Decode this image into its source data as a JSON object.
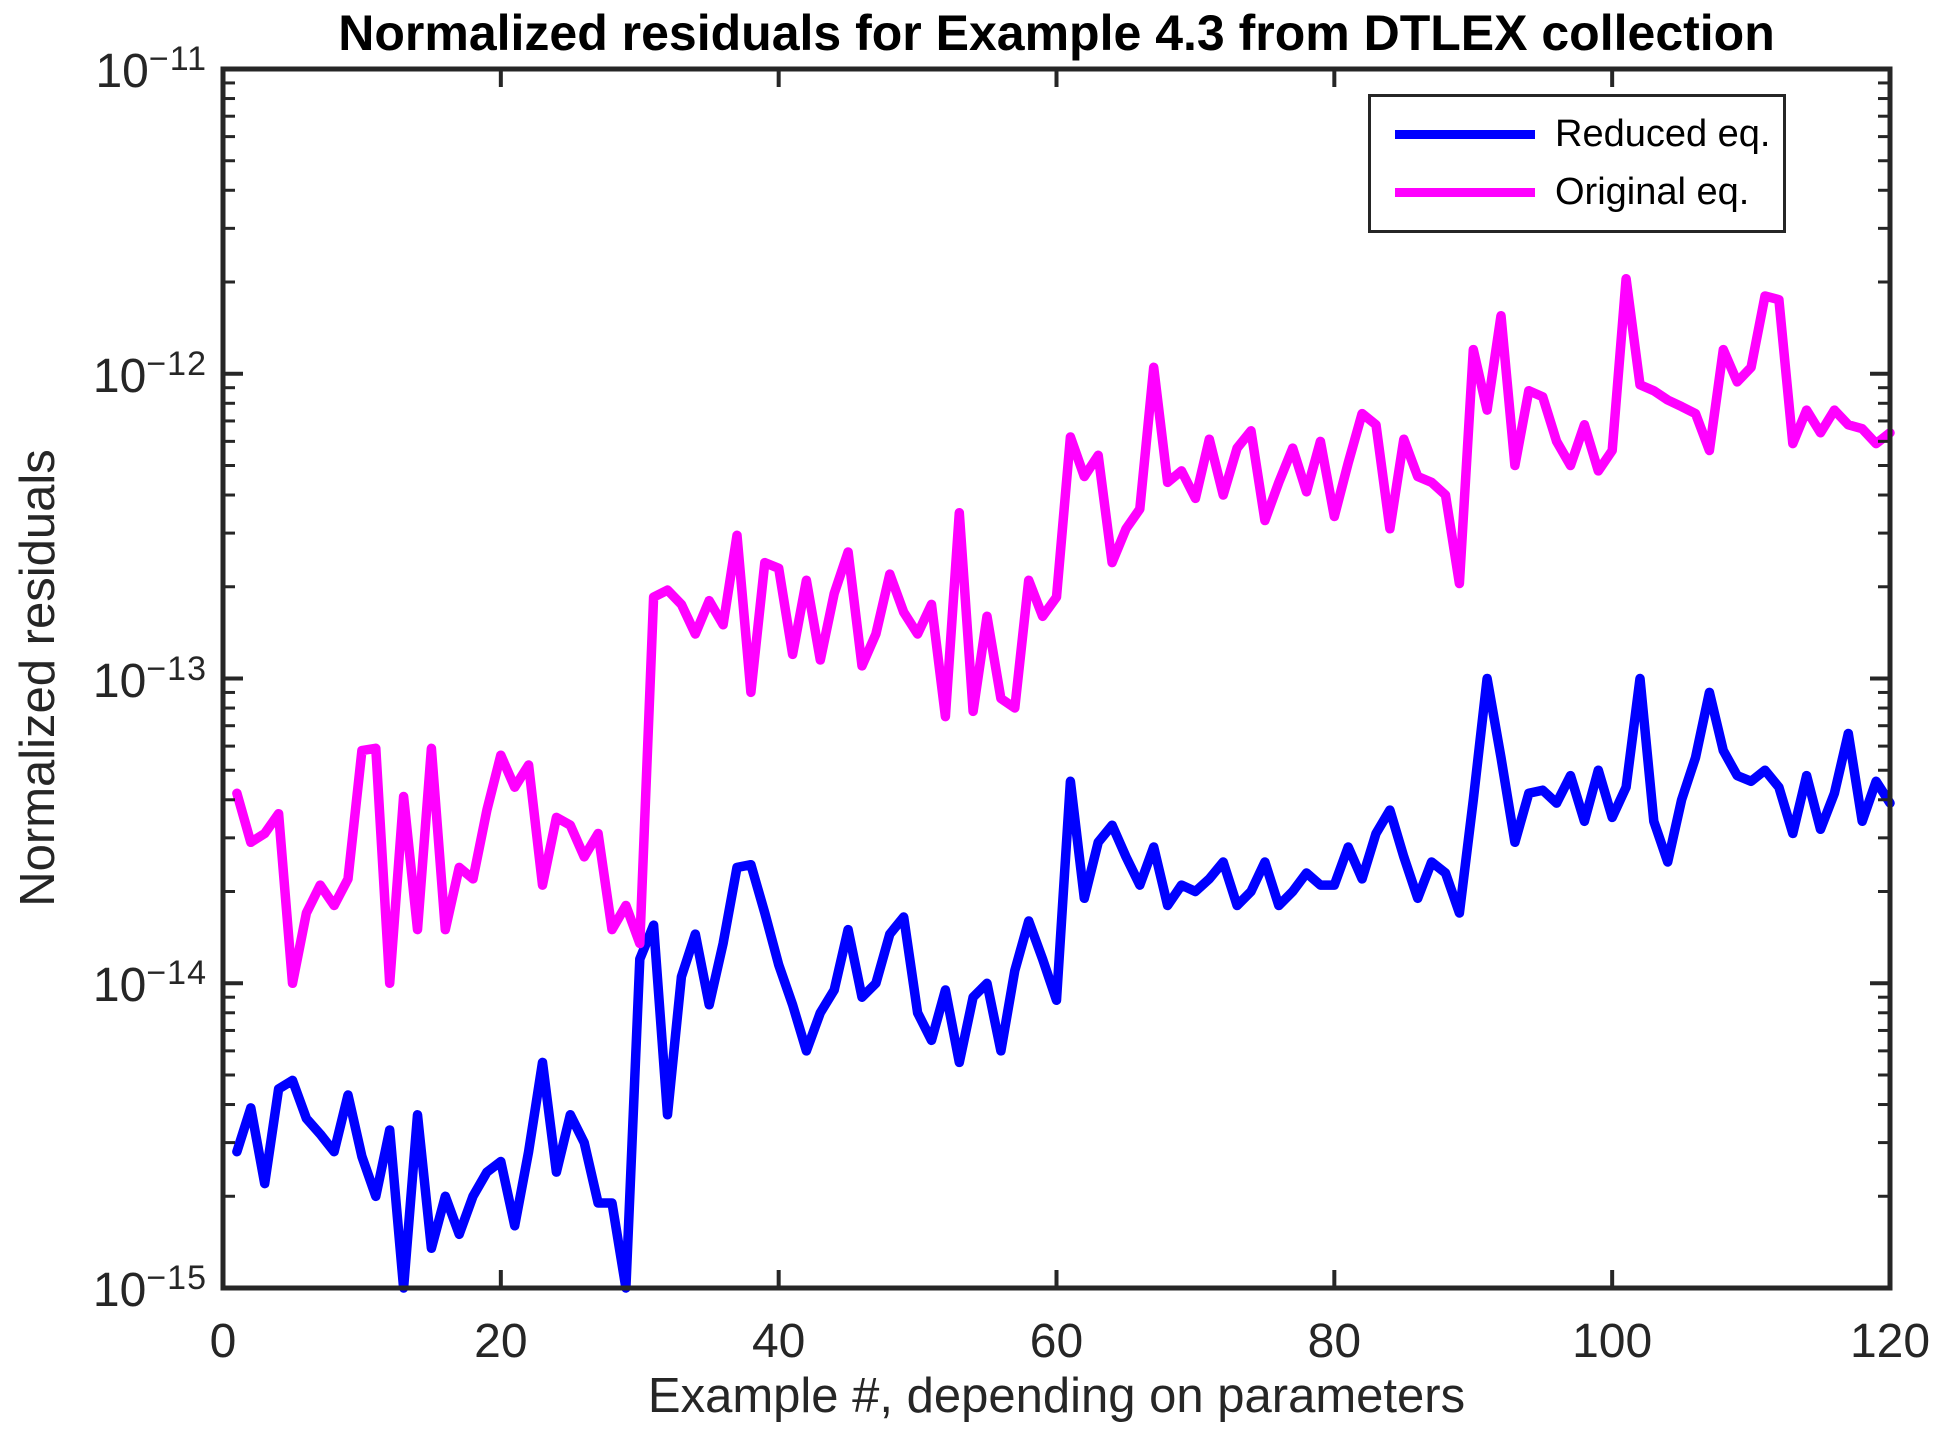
{
  "chart_data": {
    "type": "line",
    "title": "Normalized residuals for Example 4.3 from DTLEX collection",
    "xlabel": "Example #, depending on parameters",
    "ylabel": "Normalized residuals",
    "x_axis": {
      "min": 0,
      "max": 120,
      "tick_labels": [
        "0",
        "20",
        "40",
        "60",
        "80",
        "100",
        "120"
      ],
      "ticks": [
        0,
        20,
        40,
        60,
        80,
        100,
        120
      ]
    },
    "y_axis": {
      "scale": "log",
      "min": 1e-15,
      "max": 1e-11,
      "tick_exponents": [
        -11,
        -12,
        -13,
        -14,
        -15
      ],
      "tick_base": "10",
      "minor_multipliers": [
        2,
        3,
        4,
        5,
        6,
        7,
        8,
        9
      ]
    },
    "grid": false,
    "legend_position": "northeast",
    "colors": {
      "axis": "#262626",
      "title": "#000000",
      "background": "#FFFFFF"
    },
    "series": [
      {
        "name": "Reduced eq.",
        "color": "#0000FF",
        "x_start": 1,
        "values": [
          2.8e-15,
          3.9e-15,
          2.2e-15,
          4.5e-15,
          4.8e-15,
          3.6e-15,
          3.2e-15,
          2.8e-15,
          4.3e-15,
          2.7e-15,
          2e-15,
          3.3e-15,
          1e-15,
          3.7e-15,
          1.35e-15,
          2e-15,
          1.5e-15,
          2e-15,
          2.4e-15,
          2.6e-15,
          1.6e-15,
          2.8e-15,
          5.5e-15,
          2.4e-15,
          3.7e-15,
          3e-15,
          1.9e-15,
          1.9e-15,
          1e-15,
          1.2e-14,
          1.55e-14,
          3.7e-15,
          1.05e-14,
          1.45e-14,
          8.5e-15,
          1.35e-14,
          2.4e-14,
          2.45e-14,
          1.7e-14,
          1.15e-14,
          8.5e-15,
          6e-15,
          8e-15,
          9.5e-15,
          1.5e-14,
          9e-15,
          1e-14,
          1.45e-14,
          1.65e-14,
          8e-15,
          6.5e-15,
          9.5e-15,
          5.5e-15,
          9e-15,
          1e-14,
          6e-15,
          1.1e-14,
          1.6e-14,
          1.2e-14,
          8.8e-15,
          4.6e-14,
          1.9e-14,
          2.9e-14,
          3.3e-14,
          2.6e-14,
          2.1e-14,
          2.8e-14,
          1.8e-14,
          2.1e-14,
          2e-14,
          2.2e-14,
          2.5e-14,
          1.8e-14,
          2e-14,
          2.5e-14,
          1.8e-14,
          2e-14,
          2.3e-14,
          2.1e-14,
          2.1e-14,
          2.8e-14,
          2.2e-14,
          3.1e-14,
          3.7e-14,
          2.6e-14,
          1.9e-14,
          2.5e-14,
          2.3e-14,
          1.7e-14,
          4e-14,
          1e-13,
          5.5e-14,
          2.9e-14,
          4.2e-14,
          4.3e-14,
          3.9e-14,
          4.8e-14,
          3.4e-14,
          5e-14,
          3.5e-14,
          4.4e-14,
          1e-13,
          3.4e-14,
          2.5e-14,
          4e-14,
          5.5e-14,
          9e-14,
          5.8e-14,
          4.8e-14,
          4.6e-14,
          5e-14,
          4.4e-14,
          3.1e-14,
          4.8e-14,
          3.2e-14,
          4.2e-14,
          6.6e-14,
          3.4e-14,
          4.6e-14,
          3.9e-14
        ]
      },
      {
        "name": "Original eq.",
        "color": "#FF00FF",
        "x_start": 1,
        "values": [
          4.2e-14,
          2.9e-14,
          3.1e-14,
          3.6e-14,
          1e-14,
          1.7e-14,
          2.1e-14,
          1.8e-14,
          2.2e-14,
          5.8e-14,
          5.9e-14,
          1e-14,
          4.1e-14,
          1.5e-14,
          5.9e-14,
          1.5e-14,
          2.4e-14,
          2.2e-14,
          3.7e-14,
          5.6e-14,
          4.4e-14,
          5.2e-14,
          2.1e-14,
          3.5e-14,
          3.3e-14,
          2.6e-14,
          3.1e-14,
          1.5e-14,
          1.8e-14,
          1.35e-14,
          1.85e-13,
          1.95e-13,
          1.75e-13,
          1.4e-13,
          1.8e-13,
          1.5e-13,
          2.95e-13,
          9e-14,
          2.4e-13,
          2.3e-13,
          1.2e-13,
          2.1e-13,
          1.15e-13,
          1.9e-13,
          2.6e-13,
          1.1e-13,
          1.4e-13,
          2.2e-13,
          1.65e-13,
          1.4e-13,
          1.75e-13,
          7.5e-14,
          3.5e-13,
          7.8e-14,
          1.6e-13,
          8.6e-14,
          8e-14,
          2.1e-13,
          1.6e-13,
          1.85e-13,
          6.2e-13,
          4.6e-13,
          5.4e-13,
          2.4e-13,
          3.1e-13,
          3.6e-13,
          1.05e-12,
          4.4e-13,
          4.8e-13,
          3.9e-13,
          6.1e-13,
          4e-13,
          5.7e-13,
          6.5e-13,
          3.3e-13,
          4.4e-13,
          5.7e-13,
          4.1e-13,
          6e-13,
          3.4e-13,
          5.1e-13,
          7.4e-13,
          6.8e-13,
          3.1e-13,
          6.1e-13,
          4.6e-13,
          4.4e-13,
          4e-13,
          2.05e-13,
          1.2e-12,
          7.6e-13,
          1.55e-12,
          5e-13,
          8.8e-13,
          8.4e-13,
          6e-13,
          5e-13,
          6.8e-13,
          4.8e-13,
          5.6e-13,
          2.05e-12,
          9.2e-13,
          8.8e-13,
          8.2e-13,
          7.8e-13,
          7.4e-13,
          5.6e-13,
          1.2e-12,
          9.4e-13,
          1.05e-12,
          1.8e-12,
          1.75e-12,
          5.9e-13,
          7.6e-13,
          6.4e-13,
          7.6e-13,
          6.8e-13,
          6.6e-13,
          5.9e-13,
          6.4e-13
        ]
      }
    ]
  }
}
